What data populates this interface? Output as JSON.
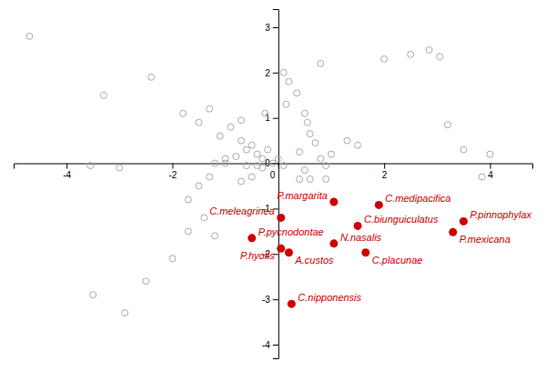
{
  "chart_data": {
    "type": "scatter",
    "series": [
      {
        "color": "#aaaaaa",
        "marker": "open-circle",
        "x": [
          -4.7,
          -3.3,
          -2.4,
          -1.8,
          -1.5,
          -1.3,
          -1.1,
          -0.9,
          -0.7,
          -0.6,
          -0.5,
          -0.4,
          -0.3,
          -0.2,
          -0.1,
          0.0,
          0.1,
          -0.8,
          -1.0,
          -1.2,
          -0.6,
          -0.4,
          -0.3,
          -0.5,
          -0.7,
          -1.0,
          -1.3,
          -1.5,
          -1.7,
          -1.4,
          -1.7,
          -1.2,
          -2.0,
          -2.5,
          -2.9,
          -3.5,
          0.1,
          0.2,
          0.35,
          0.15,
          0.5,
          0.55,
          0.6,
          0.7,
          0.4,
          0.8,
          0.9,
          0.5,
          0.4,
          0.6,
          0.9,
          1.0,
          1.3,
          1.5,
          0.8,
          2.0,
          2.5,
          2.85,
          3.05,
          3.2,
          3.5,
          4.0,
          3.85,
          -3.0,
          -3.55,
          -0.25,
          -0.7
        ],
        "values": [
          2.8,
          1.5,
          1.9,
          1.1,
          0.9,
          1.2,
          0.6,
          0.8,
          0.5,
          0.3,
          0.4,
          0.2,
          0.1,
          0.3,
          0.0,
          0.1,
          -0.05,
          0.15,
          0.1,
          0.0,
          -0.05,
          -0.05,
          -0.1,
          -0.3,
          -0.4,
          0.0,
          -0.3,
          -0.5,
          -0.8,
          -1.2,
          -1.5,
          -1.6,
          -2.1,
          -2.6,
          -3.3,
          -2.9,
          2.0,
          1.8,
          1.55,
          1.3,
          1.1,
          0.9,
          0.65,
          0.45,
          0.25,
          0.1,
          -0.05,
          -0.15,
          -0.35,
          -0.35,
          -0.35,
          0.2,
          0.5,
          0.4,
          2.2,
          2.3,
          2.4,
          2.5,
          2.35,
          0.85,
          0.3,
          0.2,
          -0.3,
          -0.1,
          -0.05,
          1.1,
          0.95
        ]
      },
      {
        "color": "#cc0000",
        "marker": "circle",
        "x": [
          1.05,
          1.9,
          0.05,
          1.5,
          3.5,
          3.3,
          -0.5,
          1.05,
          0.05,
          0.2,
          1.65,
          0.25
        ],
        "values": [
          -0.85,
          -0.92,
          -1.2,
          -1.38,
          -1.28,
          -1.52,
          -1.65,
          -1.77,
          -1.88,
          -1.97,
          -1.97,
          -3.1
        ],
        "labels": [
          "P.margarita",
          "C.medipacifica",
          "C.meleagrinea",
          "C.biunguiculatus",
          "P.pinnophylax",
          "P.mexicana",
          "P.pycnodontae",
          "N.nasalis",
          "P.hyotis",
          "A.custos",
          "C.placunae",
          "C.nipponensis"
        ]
      }
    ],
    "xlim": [
      -5.0,
      4.8
    ],
    "ylim": [
      -4.3,
      3.4
    ],
    "xticks": [
      -4,
      -2,
      0,
      2,
      4
    ],
    "yticks": [
      -4,
      -3,
      -2,
      -1,
      0,
      1,
      2,
      3
    ]
  }
}
